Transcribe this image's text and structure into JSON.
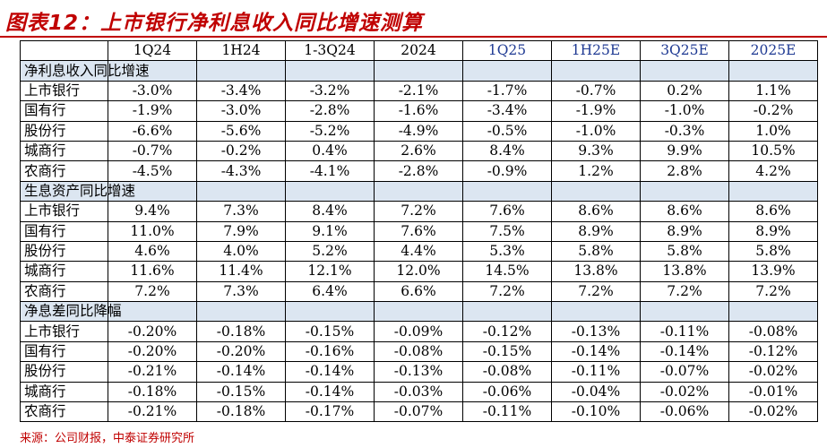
{
  "title": "图表12：上市银行净利息收入同比增速测算",
  "columns": [
    "1Q24",
    "1H24",
    "1-3Q24",
    "2024",
    "1Q25",
    "1H25E",
    "3Q25E",
    "2025E"
  ],
  "forecast_from_index": 4,
  "colors": {
    "title": "#C00000",
    "section_bg": "#DCE6F1",
    "forecast_header": "#1F3A93"
  },
  "sections": [
    {
      "name": "净利息收入同比增速",
      "rows": [
        {
          "label": "上市银行",
          "values": [
            "-3.0%",
            "-3.4%",
            "-3.2%",
            "-2.1%",
            "-1.7%",
            "-0.7%",
            "0.2%",
            "1.1%"
          ]
        },
        {
          "label": "国有行",
          "values": [
            "-1.9%",
            "-3.0%",
            "-2.8%",
            "-1.6%",
            "-3.4%",
            "-1.9%",
            "-1.0%",
            "-0.2%"
          ]
        },
        {
          "label": "股份行",
          "values": [
            "-6.6%",
            "-5.6%",
            "-5.2%",
            "-4.9%",
            "-0.5%",
            "-1.0%",
            "-0.3%",
            "1.0%"
          ]
        },
        {
          "label": "城商行",
          "values": [
            "-0.7%",
            "-0.2%",
            "0.4%",
            "2.6%",
            "8.4%",
            "9.3%",
            "9.9%",
            "10.5%"
          ]
        },
        {
          "label": "农商行",
          "values": [
            "-4.5%",
            "-4.3%",
            "-4.1%",
            "-2.8%",
            "-0.9%",
            "1.2%",
            "2.8%",
            "4.2%"
          ]
        }
      ]
    },
    {
      "name": "生息资产同比增速",
      "rows": [
        {
          "label": "上市银行",
          "values": [
            "9.4%",
            "7.3%",
            "8.4%",
            "7.2%",
            "7.6%",
            "8.6%",
            "8.6%",
            "8.6%"
          ]
        },
        {
          "label": "国有行",
          "values": [
            "11.0%",
            "7.9%",
            "9.1%",
            "7.6%",
            "7.5%",
            "8.9%",
            "8.9%",
            "8.9%"
          ]
        },
        {
          "label": "股份行",
          "values": [
            "4.6%",
            "4.0%",
            "5.2%",
            "4.4%",
            "5.3%",
            "5.8%",
            "5.8%",
            "5.8%"
          ]
        },
        {
          "label": "城商行",
          "values": [
            "11.6%",
            "11.4%",
            "12.1%",
            "12.0%",
            "14.5%",
            "13.8%",
            "13.8%",
            "13.9%"
          ]
        },
        {
          "label": "农商行",
          "values": [
            "7.2%",
            "7.3%",
            "6.4%",
            "6.6%",
            "7.2%",
            "7.2%",
            "7.2%",
            "7.2%"
          ]
        }
      ]
    },
    {
      "name": "净息差同比降幅",
      "rows": [
        {
          "label": "上市银行",
          "values": [
            "-0.20%",
            "-0.18%",
            "-0.15%",
            "-0.09%",
            "-0.12%",
            "-0.13%",
            "-0.11%",
            "-0.08%"
          ]
        },
        {
          "label": "国有行",
          "values": [
            "-0.20%",
            "-0.20%",
            "-0.16%",
            "-0.08%",
            "-0.15%",
            "-0.14%",
            "-0.14%",
            "-0.12%"
          ]
        },
        {
          "label": "股份行",
          "values": [
            "-0.21%",
            "-0.14%",
            "-0.14%",
            "-0.13%",
            "-0.08%",
            "-0.11%",
            "-0.07%",
            "-0.02%"
          ]
        },
        {
          "label": "城商行",
          "values": [
            "-0.18%",
            "-0.15%",
            "-0.14%",
            "-0.03%",
            "-0.06%",
            "-0.04%",
            "-0.02%",
            "-0.01%"
          ]
        },
        {
          "label": "农商行",
          "values": [
            "-0.21%",
            "-0.18%",
            "-0.17%",
            "-0.07%",
            "-0.11%",
            "-0.10%",
            "-0.06%",
            "-0.02%"
          ]
        }
      ]
    }
  ],
  "footer": "来源：公司财报，中泰证券研究所"
}
